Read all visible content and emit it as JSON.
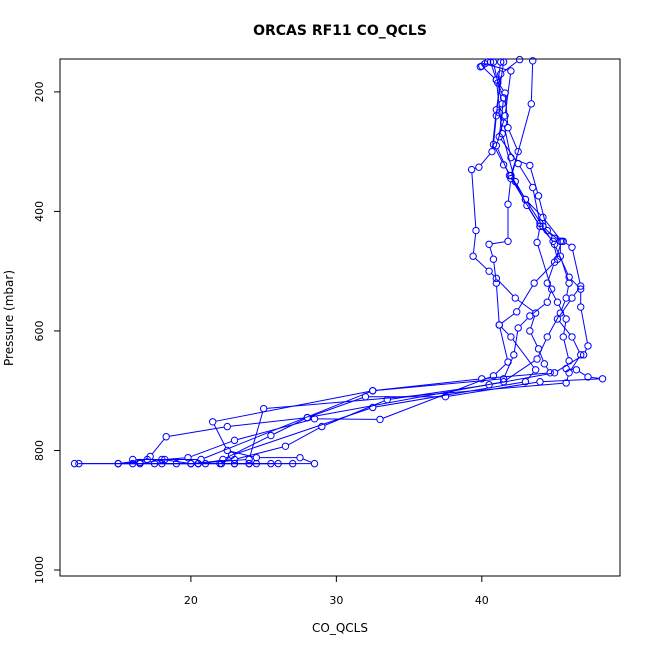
{
  "chart_data": {
    "type": "scatter",
    "title": "ORCAS RF11 CO_QCLS",
    "xlabel": "CO_QCLS",
    "ylabel": "Pressure (mbar)",
    "xlim": [
      11.0,
      49.5
    ],
    "ylim": [
      1010,
      145
    ],
    "y_inverted": true,
    "xticks": [
      20,
      30,
      40
    ],
    "yticks": [
      200,
      400,
      600,
      800,
      1000
    ],
    "grid": false,
    "color": "#0000ff",
    "series": [
      {
        "values": [
          [
            42.6,
            146
          ],
          [
            41.3,
            170
          ],
          [
            41.0,
            240
          ],
          [
            40.8,
            288
          ],
          [
            41.5,
            322
          ],
          [
            42.0,
            340
          ],
          [
            43.0,
            380
          ],
          [
            44.2,
            410
          ],
          [
            45.5,
            450
          ],
          [
            45.0,
            485
          ],
          [
            44.5,
            520
          ],
          [
            45.2,
            552
          ],
          [
            45.8,
            580
          ],
          [
            45.6,
            610
          ],
          [
            46.0,
            650
          ],
          [
            45.8,
            663
          ],
          [
            46.5,
            665
          ],
          [
            47.3,
            677
          ],
          [
            48.3,
            680
          ],
          [
            44.0,
            685
          ],
          [
            37.5,
            710
          ],
          [
            32.0,
            710
          ],
          [
            28.0,
            745
          ],
          [
            22.5,
            760
          ],
          [
            18.3,
            777
          ],
          [
            17.2,
            810
          ],
          [
            16.5,
            820
          ],
          [
            15.0,
            822
          ],
          [
            17.5,
            822
          ],
          [
            20.5,
            822
          ],
          [
            22.0,
            822
          ],
          [
            23.0,
            822
          ],
          [
            24.5,
            822
          ]
        ]
      },
      {
        "values": [
          [
            41.3,
            150
          ],
          [
            41.1,
            185
          ],
          [
            41.5,
            210
          ],
          [
            41.2,
            275
          ],
          [
            42.5,
            320
          ],
          [
            43.5,
            360
          ],
          [
            44.0,
            420
          ],
          [
            45.0,
            455
          ],
          [
            46.0,
            510
          ],
          [
            46.8,
            530
          ],
          [
            46.8,
            560
          ],
          [
            47.3,
            625
          ],
          [
            47.0,
            640
          ],
          [
            45.0,
            670
          ],
          [
            40.5,
            690
          ],
          [
            33.5,
            715
          ],
          [
            29.0,
            760
          ],
          [
            26.5,
            793
          ],
          [
            23.0,
            815
          ],
          [
            20.0,
            822
          ],
          [
            16.0,
            822
          ]
        ]
      },
      {
        "values": [
          [
            43.5,
            148
          ],
          [
            43.4,
            220
          ],
          [
            42.0,
            345
          ],
          [
            41.8,
            388
          ],
          [
            41.8,
            450
          ],
          [
            40.5,
            455
          ],
          [
            40.8,
            480
          ],
          [
            41.0,
            520
          ],
          [
            41.2,
            590
          ],
          [
            41.8,
            652
          ],
          [
            40.8,
            675
          ],
          [
            33.0,
            748
          ],
          [
            28.5,
            747
          ],
          [
            23.0,
            783
          ],
          [
            19.8,
            812
          ],
          [
            18.2,
            815
          ],
          [
            16.5,
            822
          ],
          [
            12.3,
            822
          ]
        ]
      },
      {
        "values": [
          [
            40.8,
            150
          ],
          [
            41.4,
            220
          ],
          [
            41.2,
            235
          ],
          [
            41.5,
            252
          ],
          [
            42.0,
            310
          ],
          [
            43.3,
            323
          ],
          [
            43.9,
            374
          ],
          [
            44.5,
            432
          ],
          [
            45.4,
            450
          ],
          [
            45.4,
            475
          ],
          [
            46.0,
            520
          ],
          [
            45.8,
            545
          ],
          [
            45.4,
            570
          ],
          [
            44.5,
            610
          ],
          [
            43.8,
            647
          ],
          [
            41.5,
            685
          ],
          [
            28.0,
            745
          ],
          [
            25.5,
            775
          ],
          [
            22.2,
            815
          ],
          [
            21.0,
            822
          ],
          [
            19.0,
            822
          ],
          [
            18.0,
            822
          ]
        ]
      },
      {
        "values": [
          [
            41.5,
            150
          ],
          [
            41.0,
            230
          ],
          [
            40.7,
            300
          ],
          [
            39.8,
            326
          ],
          [
            39.3,
            330
          ],
          [
            39.6,
            432
          ],
          [
            39.4,
            475
          ],
          [
            40.5,
            500
          ],
          [
            41.0,
            512
          ],
          [
            42.3,
            545
          ],
          [
            43.7,
            570
          ],
          [
            43.3,
            600
          ],
          [
            43.9,
            630
          ],
          [
            44.3,
            655
          ],
          [
            44.7,
            670
          ],
          [
            40.0,
            680
          ],
          [
            32.5,
            700
          ],
          [
            21.5,
            752
          ],
          [
            22.5,
            800
          ],
          [
            24.5,
            812
          ],
          [
            27.5,
            812
          ],
          [
            28.5,
            822
          ],
          [
            24.0,
            822
          ],
          [
            23.0,
            822
          ]
        ]
      },
      {
        "values": [
          [
            40.2,
            153
          ],
          [
            42.0,
            165
          ],
          [
            41.6,
            240
          ],
          [
            41.0,
            290
          ],
          [
            41.9,
            340
          ],
          [
            44.0,
            425
          ],
          [
            43.8,
            452
          ],
          [
            44.8,
            530
          ],
          [
            44.5,
            552
          ],
          [
            43.3,
            575
          ],
          [
            42.5,
            595
          ],
          [
            42.2,
            640
          ],
          [
            41.5,
            680
          ],
          [
            32.5,
            700
          ],
          [
            20.7,
            815
          ],
          [
            17.0,
            815
          ],
          [
            15.0,
            822
          ],
          [
            20.5,
            822
          ],
          [
            26.0,
            822
          ],
          [
            27.0,
            822
          ]
        ]
      },
      {
        "values": [
          [
            39.9,
            158
          ],
          [
            40.6,
            150
          ],
          [
            41.0,
            180
          ],
          [
            41.4,
            270
          ],
          [
            42.3,
            350
          ],
          [
            43.0,
            380
          ],
          [
            44.2,
            425
          ],
          [
            45.0,
            445
          ],
          [
            45.6,
            450
          ],
          [
            46.2,
            460
          ],
          [
            46.8,
            525
          ],
          [
            46.2,
            545
          ],
          [
            45.2,
            580
          ],
          [
            46.2,
            610
          ],
          [
            46.8,
            640
          ],
          [
            46.0,
            670
          ],
          [
            45.8,
            687
          ],
          [
            25.0,
            730
          ],
          [
            24.0,
            815
          ],
          [
            20.0,
            822
          ],
          [
            18.0,
            815
          ],
          [
            16.0,
            815
          ]
        ]
      },
      {
        "values": [
          [
            40.4,
            150
          ],
          [
            40.0,
            157
          ],
          [
            41.0,
            180
          ],
          [
            41.6,
            202
          ],
          [
            41.8,
            260
          ],
          [
            42.5,
            300
          ],
          [
            42.0,
            340
          ],
          [
            43.1,
            390
          ],
          [
            44.0,
            425
          ],
          [
            44.9,
            450
          ],
          [
            45.2,
            480
          ],
          [
            43.6,
            520
          ],
          [
            42.4,
            568
          ],
          [
            41.2,
            590
          ],
          [
            42.0,
            610
          ],
          [
            43.7,
            665
          ],
          [
            43.0,
            685
          ],
          [
            32.5,
            728
          ],
          [
            22.8,
            808
          ],
          [
            22.1,
            822
          ],
          [
            24.0,
            822
          ],
          [
            25.5,
            822
          ],
          [
            12.0,
            822
          ]
        ]
      }
    ]
  }
}
